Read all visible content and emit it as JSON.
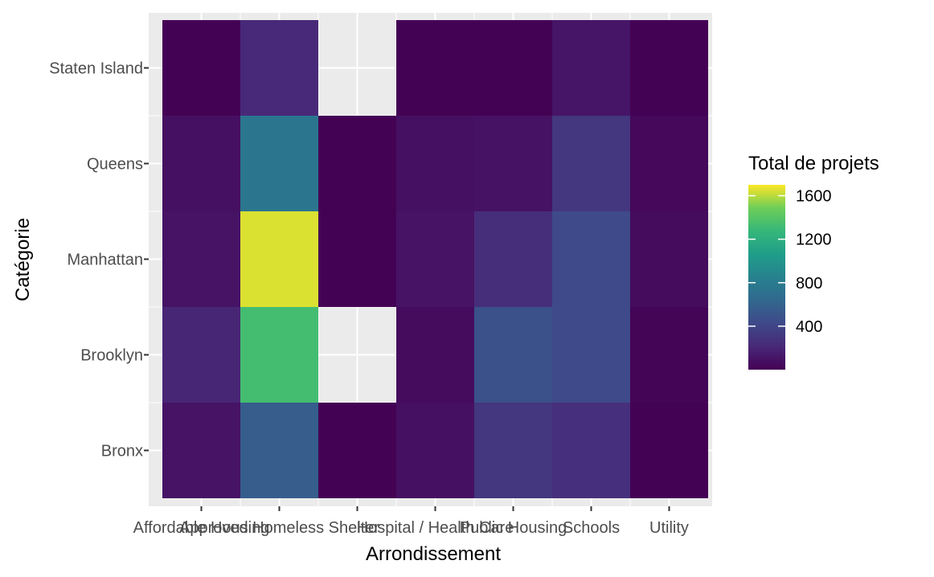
{
  "chart_data": {
    "type": "heatmap",
    "title": "",
    "xlabel": "Arrondissement",
    "ylabel": "Catégorie",
    "x_categories": [
      "Affordable Housing",
      "Approved Homeless Shelter",
      "Hospital / Health Care",
      "Public Housing",
      "Schools",
      "Utility"
    ],
    "x_categories_all": [
      "Affordable Housing",
      "Approved Homeless Shelter",
      "Hospital",
      "Hospital / Health Care",
      "Public Housing",
      "Schools",
      "Utility"
    ],
    "y_categories": [
      "Bronx",
      "Brooklyn",
      "Manhattan",
      "Queens",
      "Staten Island"
    ],
    "values": [
      [
        100,
        560,
        5,
        80,
        300,
        260,
        5
      ],
      [
        200,
        1330,
        null,
        60,
        480,
        430,
        20
      ],
      [
        100,
        1650,
        5,
        100,
        250,
        430,
        60
      ],
      [
        80,
        750,
        5,
        80,
        90,
        300,
        40
      ],
      [
        5,
        220,
        null,
        5,
        5,
        110,
        5
      ]
    ],
    "legend": {
      "title": "Total de projets",
      "ticks": [
        400,
        800,
        1200,
        1600
      ],
      "min": 0,
      "max": 1700
    },
    "grid": true,
    "missing_color": "#ebebeb"
  }
}
